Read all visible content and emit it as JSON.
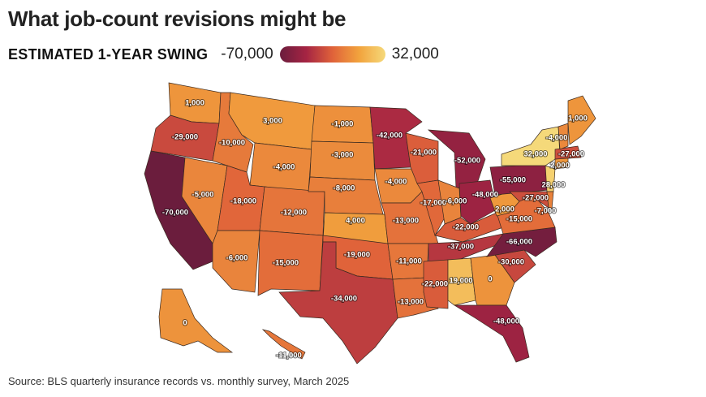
{
  "title": "What job-count revisions might be",
  "legend": {
    "label": "ESTIMATED 1-YEAR SWING",
    "min_label": "-70,000",
    "max_label": "32,000",
    "min_value": -70000,
    "max_value": 32000,
    "colors": [
      "#6b1d3d",
      "#a52443",
      "#e0633a",
      "#f2a33d",
      "#f5d97a"
    ]
  },
  "source": "Source: BLS quarterly insurance records vs. monthly survey, March 2025",
  "states": [
    {
      "id": "WA",
      "label": "1,000",
      "value": 1000
    },
    {
      "id": "OR",
      "label": "-29,000",
      "value": -29000
    },
    {
      "id": "CA",
      "label": "-70,000",
      "value": -70000
    },
    {
      "id": "NV",
      "label": "-5,000",
      "value": -5000
    },
    {
      "id": "ID",
      "label": "-10,000",
      "value": -10000
    },
    {
      "id": "MT",
      "label": "3,000",
      "value": 3000
    },
    {
      "id": "WY",
      "label": "-4,000",
      "value": -4000
    },
    {
      "id": "UT",
      "label": "-18,000",
      "value": -18000
    },
    {
      "id": "AZ",
      "label": "-6,000",
      "value": -6000
    },
    {
      "id": "CO",
      "label": "-12,000",
      "value": -12000
    },
    {
      "id": "NM",
      "label": "-15,000",
      "value": -15000
    },
    {
      "id": "ND",
      "label": "-1,000",
      "value": -1000
    },
    {
      "id": "SD",
      "label": "-3,000",
      "value": -3000
    },
    {
      "id": "NE",
      "label": "-8,000",
      "value": -8000
    },
    {
      "id": "KS",
      "label": "4,000",
      "value": 4000
    },
    {
      "id": "OK",
      "label": "-19,000",
      "value": -19000
    },
    {
      "id": "TX",
      "label": "-34,000",
      "value": -34000
    },
    {
      "id": "MN",
      "label": "-42,000",
      "value": -42000
    },
    {
      "id": "IA",
      "label": "-4,000",
      "value": -4000
    },
    {
      "id": "MO",
      "label": "-13,000",
      "value": -13000
    },
    {
      "id": "AR",
      "label": "-11,000",
      "value": -11000
    },
    {
      "id": "LA",
      "label": "-13,000",
      "value": -13000
    },
    {
      "id": "WI",
      "label": "-21,000",
      "value": -21000
    },
    {
      "id": "IL",
      "label": "-17,000",
      "value": -17000
    },
    {
      "id": "MI",
      "label": "-52,000",
      "value": -52000
    },
    {
      "id": "IN",
      "label": "-6,000",
      "value": -6000
    },
    {
      "id": "OH",
      "label": "-48,000",
      "value": -48000
    },
    {
      "id": "KY",
      "label": "-22,000",
      "value": -22000
    },
    {
      "id": "TN",
      "label": "-37,000",
      "value": -37000
    },
    {
      "id": "MS",
      "label": "-22,000",
      "value": -22000
    },
    {
      "id": "AL",
      "label": "19,000",
      "value": 19000
    },
    {
      "id": "GA",
      "label": "0",
      "value": 0
    },
    {
      "id": "FL",
      "label": "-48,000",
      "value": -48000
    },
    {
      "id": "SC",
      "label": "-30,000",
      "value": -30000
    },
    {
      "id": "NC",
      "label": "-66,000",
      "value": -66000
    },
    {
      "id": "VA",
      "label": "-15,000",
      "value": -15000
    },
    {
      "id": "WV",
      "label": "2,000",
      "value": 2000
    },
    {
      "id": "PA",
      "label": "-55,000",
      "value": -55000
    },
    {
      "id": "NY",
      "label": "32,000",
      "value": 32000
    },
    {
      "id": "NJ",
      "label": "28,000",
      "value": 28000
    },
    {
      "id": "MD",
      "label": "-27,000",
      "value": -27000
    },
    {
      "id": "DE",
      "label": "-7,000",
      "value": -7000
    },
    {
      "id": "CT",
      "label": "2,000",
      "value": 2000
    },
    {
      "id": "MA",
      "label": "-27,000",
      "value": -27000
    },
    {
      "id": "VT",
      "label": "-4,000",
      "value": -4000
    },
    {
      "id": "ME",
      "label": "1,000",
      "value": 1000
    },
    {
      "id": "AK",
      "label": "0",
      "value": 0
    },
    {
      "id": "HI",
      "label": "-11,000",
      "value": -11000
    }
  ]
}
